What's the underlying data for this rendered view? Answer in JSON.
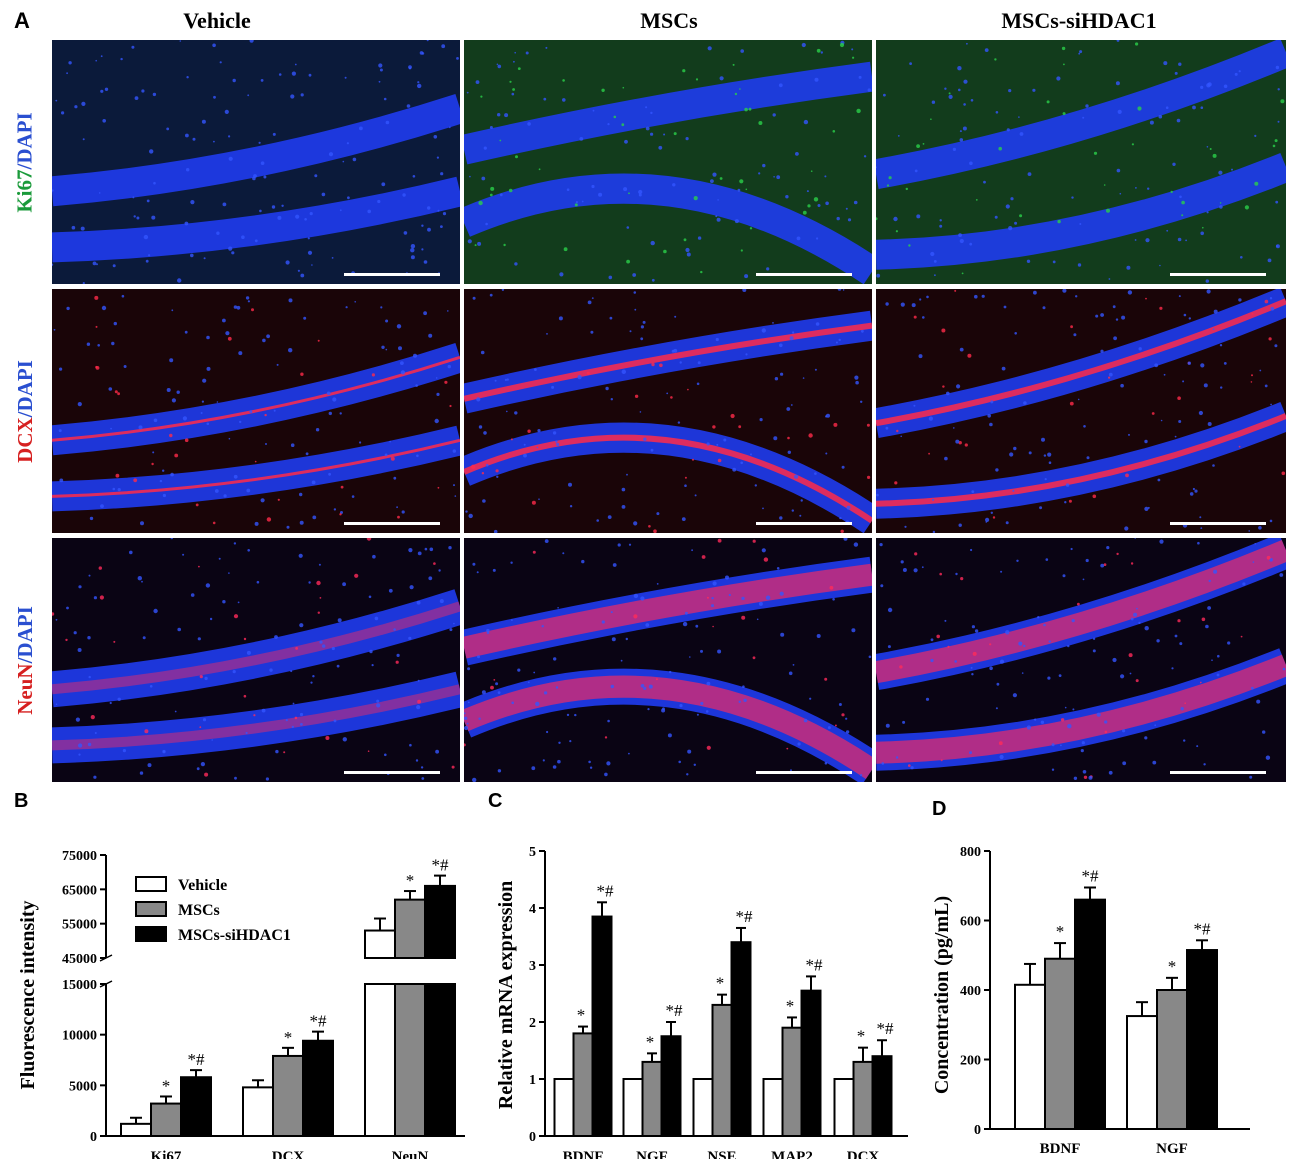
{
  "panel_a": {
    "letter": "A",
    "columns": [
      "Vehicle",
      "MSCs",
      "MSCs-siHDAC1"
    ],
    "rows": [
      {
        "marker": "Ki67",
        "counter": "/DAPI",
        "marker_color": "#1a9a3a",
        "signal_color": "#2bd04a"
      },
      {
        "marker": "DCX",
        "counter": "/DAPI",
        "marker_color": "#d62020",
        "signal_color": "#ff2a4a"
      },
      {
        "marker": "NeuN",
        "counter": "/DAPI",
        "marker_color": "#d62020",
        "signal_color": "#ff2a5a"
      }
    ],
    "counter_color": "#2a4fd0"
  },
  "panel_b": {
    "letter": "B",
    "ylabel": "Fluorescence intensity",
    "legend": [
      "Vehicle",
      "MSCs",
      "MSCs-siHDAC1"
    ],
    "upper_ticks": [
      "75000",
      "65000",
      "55000",
      "45000"
    ],
    "lower_ticks": [
      "15000",
      "10000",
      "5000",
      "0"
    ],
    "categories": [
      "Ki67",
      "DCX",
      "NeuN"
    ]
  },
  "panel_c": {
    "letter": "C",
    "ylabel": "Relative mRNA expression",
    "ticks": [
      "5",
      "4",
      "3",
      "2",
      "1",
      "0"
    ],
    "categories": [
      "BDNF",
      "NGF",
      "NSE",
      "MAP2",
      "DCX"
    ]
  },
  "panel_d": {
    "letter": "D",
    "ylabel": "Concentration (pg/mL)",
    "ticks": [
      "800",
      "600",
      "400",
      "200",
      "0"
    ],
    "categories": [
      "BDNF",
      "NGF"
    ]
  },
  "chart_data": [
    {
      "type": "bar",
      "ylabel": "Fluorescence intensity",
      "categories": [
        "Ki67",
        "DCX",
        "NeuN"
      ],
      "ylim": [
        0,
        75000
      ],
      "y_axis_break": [
        15000,
        45000
      ],
      "series": [
        {
          "name": "Vehicle",
          "color": "#ffffff",
          "values": [
            1200,
            4800,
            53000
          ],
          "errors": [
            600,
            700,
            3500
          ]
        },
        {
          "name": "MSCs",
          "color": "#888888",
          "values": [
            3200,
            7900,
            62000
          ],
          "errors": [
            700,
            800,
            2500
          ],
          "annotations": [
            "*",
            "*",
            "*"
          ]
        },
        {
          "name": "MSCs-siHDAC1",
          "color": "#000000",
          "values": [
            5800,
            9400,
            66000
          ],
          "errors": [
            700,
            900,
            3000
          ],
          "annotations": [
            "*#",
            "*#",
            "*#"
          ]
        }
      ]
    },
    {
      "type": "bar",
      "ylabel": "Relative mRNA expression",
      "categories": [
        "BDNF",
        "NGF",
        "NSE",
        "MAP2",
        "DCX"
      ],
      "ylim": [
        0,
        5
      ],
      "series": [
        {
          "name": "Vehicle",
          "color": "#ffffff",
          "values": [
            1.0,
            1.0,
            1.0,
            1.0,
            1.0
          ],
          "errors": [
            0,
            0,
            0,
            0,
            0
          ]
        },
        {
          "name": "MSCs",
          "color": "#888888",
          "values": [
            1.8,
            1.3,
            2.3,
            1.9,
            1.3
          ],
          "errors": [
            0.12,
            0.15,
            0.18,
            0.18,
            0.25
          ],
          "annotations": [
            "*",
            "*",
            "*",
            "*",
            "*"
          ]
        },
        {
          "name": "MSCs-siHDAC1",
          "color": "#000000",
          "values": [
            3.85,
            1.75,
            3.4,
            2.55,
            1.4
          ],
          "errors": [
            0.25,
            0.25,
            0.25,
            0.25,
            0.28
          ],
          "annotations": [
            "*#",
            "*#",
            "*#",
            "*#",
            "*#"
          ]
        }
      ]
    },
    {
      "type": "bar",
      "ylabel": "Concentration (pg/mL)",
      "categories": [
        "BDNF",
        "NGF"
      ],
      "ylim": [
        0,
        800
      ],
      "series": [
        {
          "name": "Vehicle",
          "color": "#ffffff",
          "values": [
            415,
            325
          ],
          "errors": [
            60,
            40
          ]
        },
        {
          "name": "MSCs",
          "color": "#888888",
          "values": [
            490,
            400
          ],
          "errors": [
            45,
            35
          ],
          "annotations": [
            "*",
            "*"
          ]
        },
        {
          "name": "MSCs-siHDAC1",
          "color": "#000000",
          "values": [
            660,
            515
          ],
          "errors": [
            35,
            28
          ],
          "annotations": [
            "*#",
            "*#"
          ]
        }
      ]
    }
  ]
}
